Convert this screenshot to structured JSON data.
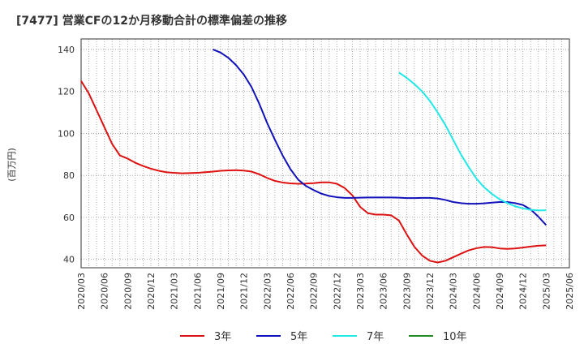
{
  "chart_data": {
    "type": "line",
    "title": "[7477]  営業CFの12か月移動合計の標準偏差の推移",
    "ylabel": "(百万円)",
    "xlabel": "",
    "ylim": [
      36,
      145
    ],
    "yticks": [
      40,
      60,
      80,
      100,
      120,
      140
    ],
    "xticks": [
      "2020/03",
      "2020/06",
      "2020/09",
      "2020/12",
      "2021/03",
      "2021/06",
      "2021/09",
      "2021/12",
      "2022/03",
      "2022/06",
      "2022/09",
      "2022/12",
      "2023/03",
      "2023/06",
      "2023/09",
      "2023/12",
      "2024/03",
      "2024/06",
      "2024/09",
      "2024/12",
      "2025/03",
      "2025/06"
    ],
    "grid": true,
    "legend_position": "bottom",
    "series": [
      {
        "name": "3年",
        "color": "#dd1111",
        "points": [
          [
            "2020/03",
            125
          ],
          [
            "2020/04",
            119
          ],
          [
            "2020/05",
            111
          ],
          [
            "2020/06",
            103
          ],
          [
            "2020/07",
            95
          ],
          [
            "2020/08",
            89.5
          ],
          [
            "2020/09",
            88
          ],
          [
            "2020/10",
            86
          ],
          [
            "2020/11",
            84.5
          ],
          [
            "2020/12",
            83.2
          ],
          [
            "2021/01",
            82.2
          ],
          [
            "2021/02",
            81.5
          ],
          [
            "2021/03",
            81.2
          ],
          [
            "2021/04",
            81
          ],
          [
            "2021/05",
            81.1
          ],
          [
            "2021/06",
            81.2
          ],
          [
            "2021/07",
            81.5
          ],
          [
            "2021/08",
            81.8
          ],
          [
            "2021/09",
            82.2
          ],
          [
            "2021/10",
            82.4
          ],
          [
            "2021/11",
            82.5
          ],
          [
            "2021/12",
            82.3
          ],
          [
            "2022/01",
            81.8
          ],
          [
            "2022/02",
            80.5
          ],
          [
            "2022/03",
            78.8
          ],
          [
            "2022/04",
            77.4
          ],
          [
            "2022/05",
            76.6
          ],
          [
            "2022/06",
            76.2
          ],
          [
            "2022/07",
            76
          ],
          [
            "2022/08",
            76.1
          ],
          [
            "2022/09",
            76.3
          ],
          [
            "2022/10",
            76.7
          ],
          [
            "2022/11",
            76.7
          ],
          [
            "2022/12",
            76
          ],
          [
            "2023/01",
            74
          ],
          [
            "2023/02",
            70.5
          ],
          [
            "2023/03",
            65
          ],
          [
            "2023/04",
            62
          ],
          [
            "2023/05",
            61.3
          ],
          [
            "2023/06",
            61.3
          ],
          [
            "2023/07",
            61
          ],
          [
            "2023/08",
            58.5
          ],
          [
            "2023/09",
            52
          ],
          [
            "2023/10",
            46
          ],
          [
            "2023/11",
            41.8
          ],
          [
            "2023/12",
            39.3
          ],
          [
            "2024/01",
            38.5
          ],
          [
            "2024/02",
            39.3
          ],
          [
            "2024/03",
            41
          ],
          [
            "2024/04",
            42.7
          ],
          [
            "2024/05",
            44.3
          ],
          [
            "2024/06",
            45.3
          ],
          [
            "2024/07",
            45.9
          ],
          [
            "2024/08",
            45.8
          ],
          [
            "2024/09",
            45.2
          ],
          [
            "2024/10",
            45
          ],
          [
            "2024/11",
            45.2
          ],
          [
            "2024/12",
            45.6
          ],
          [
            "2025/01",
            46.1
          ],
          [
            "2025/02",
            46.5
          ],
          [
            "2025/03",
            46.7
          ]
        ]
      },
      {
        "name": "5年",
        "color": "#1111bb",
        "points": [
          [
            "2021/08",
            140
          ],
          [
            "2021/09",
            138.5
          ],
          [
            "2021/10",
            136
          ],
          [
            "2021/11",
            132.5
          ],
          [
            "2021/12",
            128
          ],
          [
            "2022/01",
            122
          ],
          [
            "2022/02",
            114
          ],
          [
            "2022/03",
            105
          ],
          [
            "2022/04",
            97
          ],
          [
            "2022/05",
            89.5
          ],
          [
            "2022/06",
            83
          ],
          [
            "2022/07",
            78
          ],
          [
            "2022/08",
            75
          ],
          [
            "2022/09",
            73
          ],
          [
            "2022/10",
            71.3
          ],
          [
            "2022/11",
            70.2
          ],
          [
            "2022/12",
            69.6
          ],
          [
            "2023/01",
            69.3
          ],
          [
            "2023/02",
            69.3
          ],
          [
            "2023/03",
            69.4
          ],
          [
            "2023/04",
            69.5
          ],
          [
            "2023/05",
            69.5
          ],
          [
            "2023/06",
            69.5
          ],
          [
            "2023/07",
            69.5
          ],
          [
            "2023/08",
            69.4
          ],
          [
            "2023/09",
            69.2
          ],
          [
            "2023/10",
            69.2
          ],
          [
            "2023/11",
            69.3
          ],
          [
            "2023/12",
            69.3
          ],
          [
            "2024/01",
            69
          ],
          [
            "2024/02",
            68.3
          ],
          [
            "2024/03",
            67.3
          ],
          [
            "2024/04",
            66.8
          ],
          [
            "2024/05",
            66.5
          ],
          [
            "2024/06",
            66.5
          ],
          [
            "2024/07",
            66.7
          ],
          [
            "2024/08",
            67
          ],
          [
            "2024/09",
            67.3
          ],
          [
            "2024/10",
            67.3
          ],
          [
            "2024/11",
            66.8
          ],
          [
            "2024/12",
            65.9
          ],
          [
            "2025/01",
            63.8
          ],
          [
            "2025/02",
            60.3
          ],
          [
            "2025/03",
            56.3
          ]
        ]
      },
      {
        "name": "7年",
        "color": "#22e8e8",
        "points": [
          [
            "2023/08",
            129
          ],
          [
            "2023/09",
            126.5
          ],
          [
            "2023/10",
            123.5
          ],
          [
            "2023/11",
            120
          ],
          [
            "2023/12",
            115.5
          ],
          [
            "2024/01",
            110
          ],
          [
            "2024/02",
            104
          ],
          [
            "2024/03",
            97
          ],
          [
            "2024/04",
            90
          ],
          [
            "2024/05",
            84
          ],
          [
            "2024/06",
            78.5
          ],
          [
            "2024/07",
            74.3
          ],
          [
            "2024/08",
            71.2
          ],
          [
            "2024/09",
            68.6
          ],
          [
            "2024/10",
            66.8
          ],
          [
            "2024/11",
            65.3
          ],
          [
            "2024/12",
            64.3
          ],
          [
            "2025/01",
            63.6
          ],
          [
            "2025/02",
            63.3
          ],
          [
            "2025/03",
            63.4
          ]
        ]
      },
      {
        "name": "10年",
        "color": "#228b22",
        "points": []
      }
    ]
  }
}
